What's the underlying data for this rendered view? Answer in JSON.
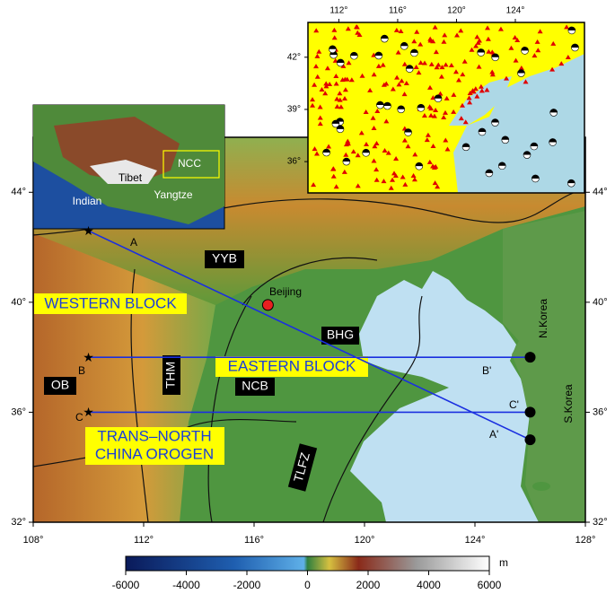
{
  "main_map": {
    "lon_range": [
      108,
      128
    ],
    "lat_range": [
      32,
      46
    ],
    "lon_ticks": [
      {
        "value": 108,
        "label": "108°"
      },
      {
        "value": 112,
        "label": "112°"
      },
      {
        "value": 116,
        "label": "116°"
      },
      {
        "value": 120,
        "label": "120°"
      },
      {
        "value": 124,
        "label": "124°"
      },
      {
        "value": 128,
        "label": "128°"
      }
    ],
    "lat_ticks": [
      {
        "value": 32,
        "label": "32°"
      },
      {
        "value": 36,
        "label": "36°"
      },
      {
        "value": 40,
        "label": "40°"
      },
      {
        "value": 44,
        "label": "44°"
      }
    ]
  },
  "inset_seismicity": {
    "lon_range": [
      109.9,
      128.7
    ],
    "lat_range": [
      34.2,
      44
    ],
    "lon_ticks": [
      {
        "value": 112,
        "label": "112°"
      },
      {
        "value": 116,
        "label": "116°"
      },
      {
        "value": 120,
        "label": "120°"
      },
      {
        "value": 124,
        "label": "124°"
      }
    ],
    "lat_ticks": [
      {
        "value": 36,
        "label": "36°"
      },
      {
        "value": 39,
        "label": "39°"
      },
      {
        "value": 42,
        "label": "42°"
      }
    ]
  },
  "inset_overview": {
    "labels": [
      "Tibet",
      "Indian",
      "Yangtze",
      "NCC"
    ]
  },
  "colorbar": {
    "range": [
      -6000,
      6000
    ],
    "ticks": [
      -6000,
      -4000,
      -2000,
      0,
      2000,
      4000,
      6000
    ],
    "unit": "m"
  },
  "profiles": [
    {
      "start": "A",
      "end": "A'",
      "from": [
        110,
        42.6
      ],
      "to": [
        126,
        35
      ]
    },
    {
      "start": "B",
      "end": "B'",
      "from": [
        110,
        38
      ],
      "to": [
        126,
        38
      ]
    },
    {
      "start": "C",
      "end": "C'",
      "from": [
        110,
        36
      ],
      "to": [
        126,
        36
      ]
    }
  ],
  "beijing": {
    "name": "Beijing",
    "lon": 116.5,
    "lat": 39.9
  },
  "labels": {
    "yyb": "YYB",
    "western_block": "WESTERN BLOCK",
    "bhg": "BHG",
    "eastern_block": "EASTERN BLOCK",
    "ob": "OB",
    "thm": "THM",
    "ncb": "NCB",
    "tnco_1": "TRANS–NORTH",
    "tnco_2": "CHINA OROGEN",
    "tlfz": "TLFZ",
    "n_korea": "N.Korea",
    "s_korea": "S.Korea"
  }
}
